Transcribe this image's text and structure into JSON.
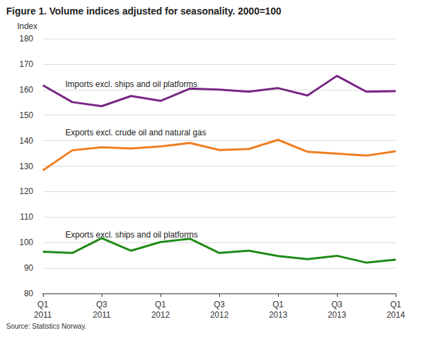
{
  "chart_data": {
    "type": "line",
    "title": "Figure 1. Volume indices adjusted for seasonality. 2000=100",
    "ylabel": "Index",
    "source": "Source: Statistics Norway.",
    "categories": [
      "Q1\n2011",
      null,
      "Q3\n2011",
      null,
      "Q1\n2012",
      null,
      "Q3\n2012",
      null,
      "Q1\n2013",
      null,
      "Q3\n2013",
      null,
      "Q1\n2014"
    ],
    "series": [
      {
        "name": "Imports excl. ships and oil platforms",
        "color": "#772583",
        "values": [
          161.7,
          155.1,
          153.5,
          157.5,
          155.6,
          160.4,
          160.0,
          159.2,
          160.6,
          157.7,
          165.4,
          159.2,
          159.4
        ]
      },
      {
        "name": "Exports excl. crude oil and natural gas",
        "color": "#f07d1e",
        "values": [
          128.3,
          136.2,
          137.4,
          136.9,
          137.7,
          139.1,
          136.3,
          136.7,
          140.3,
          135.6,
          134.9,
          134.1,
          135.8
        ]
      },
      {
        "name": "Exports excl. ships and oil platforms",
        "color": "#1e8a16",
        "values": [
          96.4,
          95.9,
          101.7,
          96.8,
          100.2,
          101.5,
          95.9,
          96.8,
          94.7,
          93.5,
          94.8,
          92.1,
          93.3
        ]
      }
    ],
    "ylim": [
      80,
      180
    ],
    "yticks": [
      80,
      90,
      100,
      110,
      120,
      130,
      140,
      150,
      160,
      170,
      180
    ],
    "grid": true
  }
}
